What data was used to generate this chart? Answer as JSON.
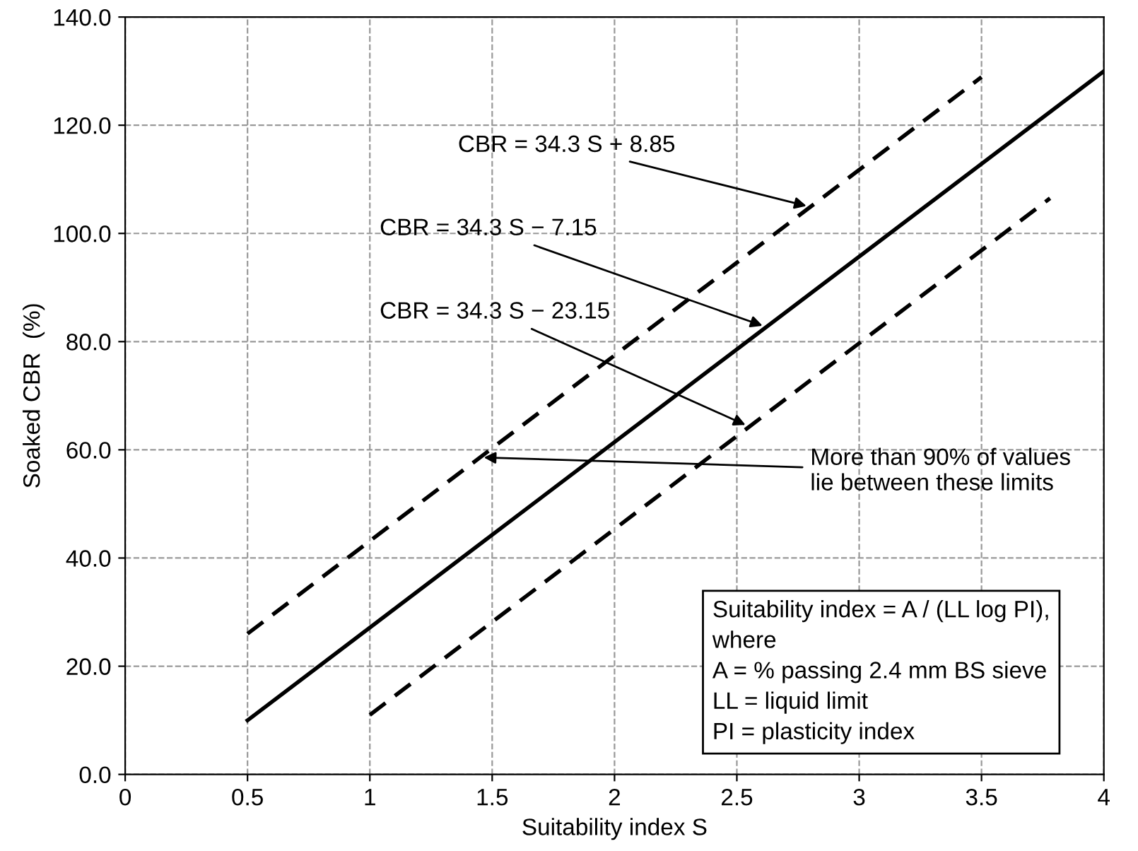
{
  "chart_data": {
    "type": "line",
    "xlabel": "Suitability index S",
    "ylabel": "Soaked CBR  (%)",
    "series": [
      {
        "color": "#000000",
        "line_style": "dashed",
        "x": [
          0.5,
          3.5
        ],
        "values": [
          26.0,
          128.9
        ]
      },
      {
        "color": "#000000",
        "line_style": "solid",
        "x": [
          0.5,
          4
        ],
        "values": [
          10.0,
          130.0
        ]
      },
      {
        "color": "#000000",
        "line_style": "dashed",
        "x": [
          1,
          3.78
        ],
        "values": [
          11.0,
          106.5
        ]
      }
    ],
    "xlim": [
      0,
      4
    ],
    "ylim": [
      0,
      140
    ],
    "xticks": [
      0,
      0.5,
      1,
      1.5,
      2,
      2.5,
      3,
      3.5,
      4
    ],
    "yticks": [
      {
        "value": 0,
        "label": "0.0"
      },
      {
        "value": 20,
        "label": "20.0"
      },
      {
        "value": 40,
        "label": "40.0"
      },
      {
        "value": 60,
        "label": "60.0"
      },
      {
        "value": 80,
        "label": "80.0"
      },
      {
        "value": 100,
        "label": "100.0"
      },
      {
        "value": 120,
        "label": "120.0"
      },
      {
        "value": 140,
        "label": "140.0"
      }
    ],
    "grid": true,
    "legend": false,
    "marker": "none",
    "annotations": [
      {
        "text": "CBR = 34.3 S + 8.85",
        "x": 2.8,
        "y": 104.9
      },
      {
        "text": "CBR = 34.3 S − 7.15",
        "x": 2.62,
        "y": 82.7
      },
      {
        "text": "CBR = 34.3 S − 23.15",
        "x": 2.55,
        "y": 64.3
      },
      {
        "text": "More than 90% of values\nlie between these limits",
        "x": 1.45,
        "y": 58.6
      },
      "Suitability index = A / (LL log PI),\nwhere\nA = % passing 2.4 mm BS sieve\nLL = liquid limit\nPI = plasticity index"
    ]
  }
}
